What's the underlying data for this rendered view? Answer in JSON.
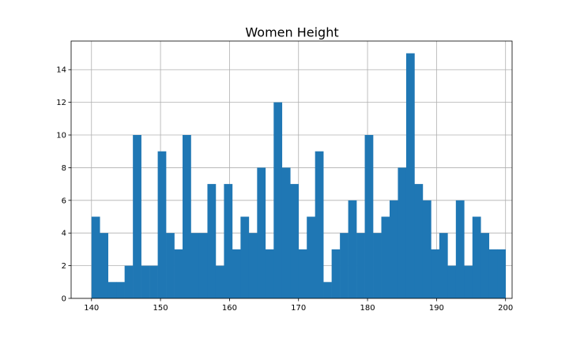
{
  "chart_data": {
    "type": "bar",
    "title": "Women Height",
    "xlabel": "",
    "ylabel": "",
    "xlim": [
      137.05,
      200.95
    ],
    "ylim": [
      0,
      15.75
    ],
    "x_ticks": [
      140,
      150,
      160,
      170,
      180,
      190,
      200
    ],
    "y_ticks": [
      0,
      2,
      4,
      6,
      8,
      10,
      12,
      14
    ],
    "grid": true,
    "bar_color": "#1f77b4",
    "bin_width": 1.2,
    "bin_start": 140,
    "values": [
      5,
      4,
      1,
      1,
      2,
      10,
      2,
      2,
      9,
      4,
      3,
      10,
      4,
      4,
      7,
      2,
      7,
      3,
      5,
      4,
      8,
      3,
      12,
      8,
      7,
      3,
      5,
      9,
      1,
      3,
      4,
      6,
      4,
      10,
      4,
      5,
      6,
      8,
      15,
      7,
      6,
      3,
      4,
      2,
      6,
      2,
      5,
      4,
      3,
      3
    ]
  }
}
